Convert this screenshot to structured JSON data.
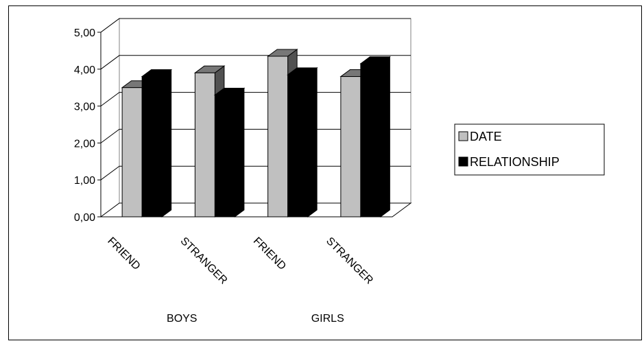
{
  "chart_data": {
    "type": "bar",
    "title": "",
    "xlabel": "",
    "ylabel": "",
    "ylim": [
      0,
      5
    ],
    "yticks": [
      "0,00",
      "1,00",
      "2,00",
      "3,00",
      "4,00",
      "5,00"
    ],
    "grid": true,
    "legend_position": "right",
    "categories": [
      "FRIEND",
      "STRANGER",
      "FRIEND",
      "STRANGER"
    ],
    "groups": [
      "BOYS",
      "GIRLS"
    ],
    "series": [
      {
        "name": "DATE",
        "color": "#c0c0c0",
        "values": [
          3.5,
          3.9,
          4.35,
          3.8
        ]
      },
      {
        "name": "RELATIONSHIP",
        "color": "#000000",
        "values": [
          3.8,
          3.3,
          3.85,
          4.15
        ]
      }
    ]
  }
}
